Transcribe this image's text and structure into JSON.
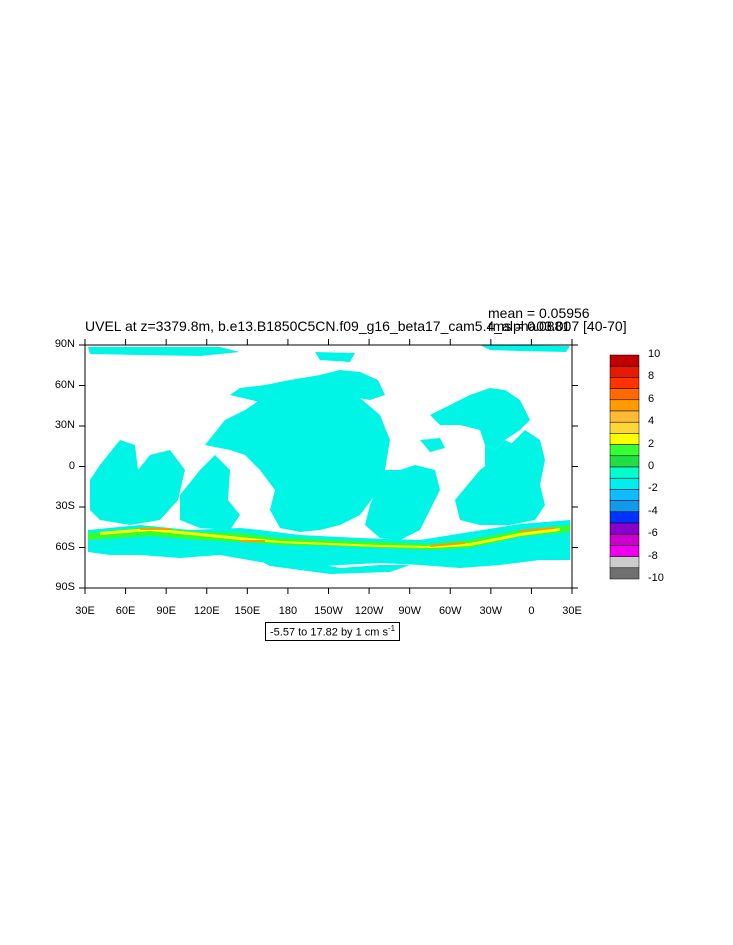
{
  "plot": {
    "title": "UVEL at z=3379.8m, b.e13.B1850C5CN.f09_g16_beta17_cam5.4_alpha03.007 [40-70]",
    "mean_label": "mean = 0.05956",
    "rms_label": "rms = 0.0881",
    "range_label_main": "-5.57 to 17.82 by 1 cm s",
    "range_label_exp": "-1"
  },
  "axes": {
    "y_ticks": [
      "90N",
      "60N",
      "30N",
      "0",
      "30S",
      "60S",
      "90S"
    ],
    "x_ticks": [
      "30E",
      "60E",
      "90E",
      "120E",
      "150E",
      "180",
      "150W",
      "120W",
      "90W",
      "60W",
      "30W",
      "0",
      "30E"
    ]
  },
  "colorbar": {
    "labels": [
      "10",
      "8",
      "6",
      "4",
      "2",
      "0",
      "-2",
      "-4",
      "-6",
      "-8",
      "-10"
    ],
    "colors": [
      "#c00000",
      "#e61a00",
      "#ff3300",
      "#ff6a00",
      "#ff9a00",
      "#ffbb33",
      "#ffd633",
      "#ffff00",
      "#33ff33",
      "#22dd44",
      "#00ffcc",
      "#00eeee",
      "#11bbff",
      "#1199ee",
      "#0033ff",
      "#8800cc",
      "#cc00cc",
      "#ee00ee",
      "#cccccc",
      "#707070"
    ]
  },
  "map_colors": {
    "ocean_base": "#00f5e6",
    "band_green": "#33ff33",
    "band_yellow": "#ffff00",
    "band_orange": "#ff9a00"
  }
}
